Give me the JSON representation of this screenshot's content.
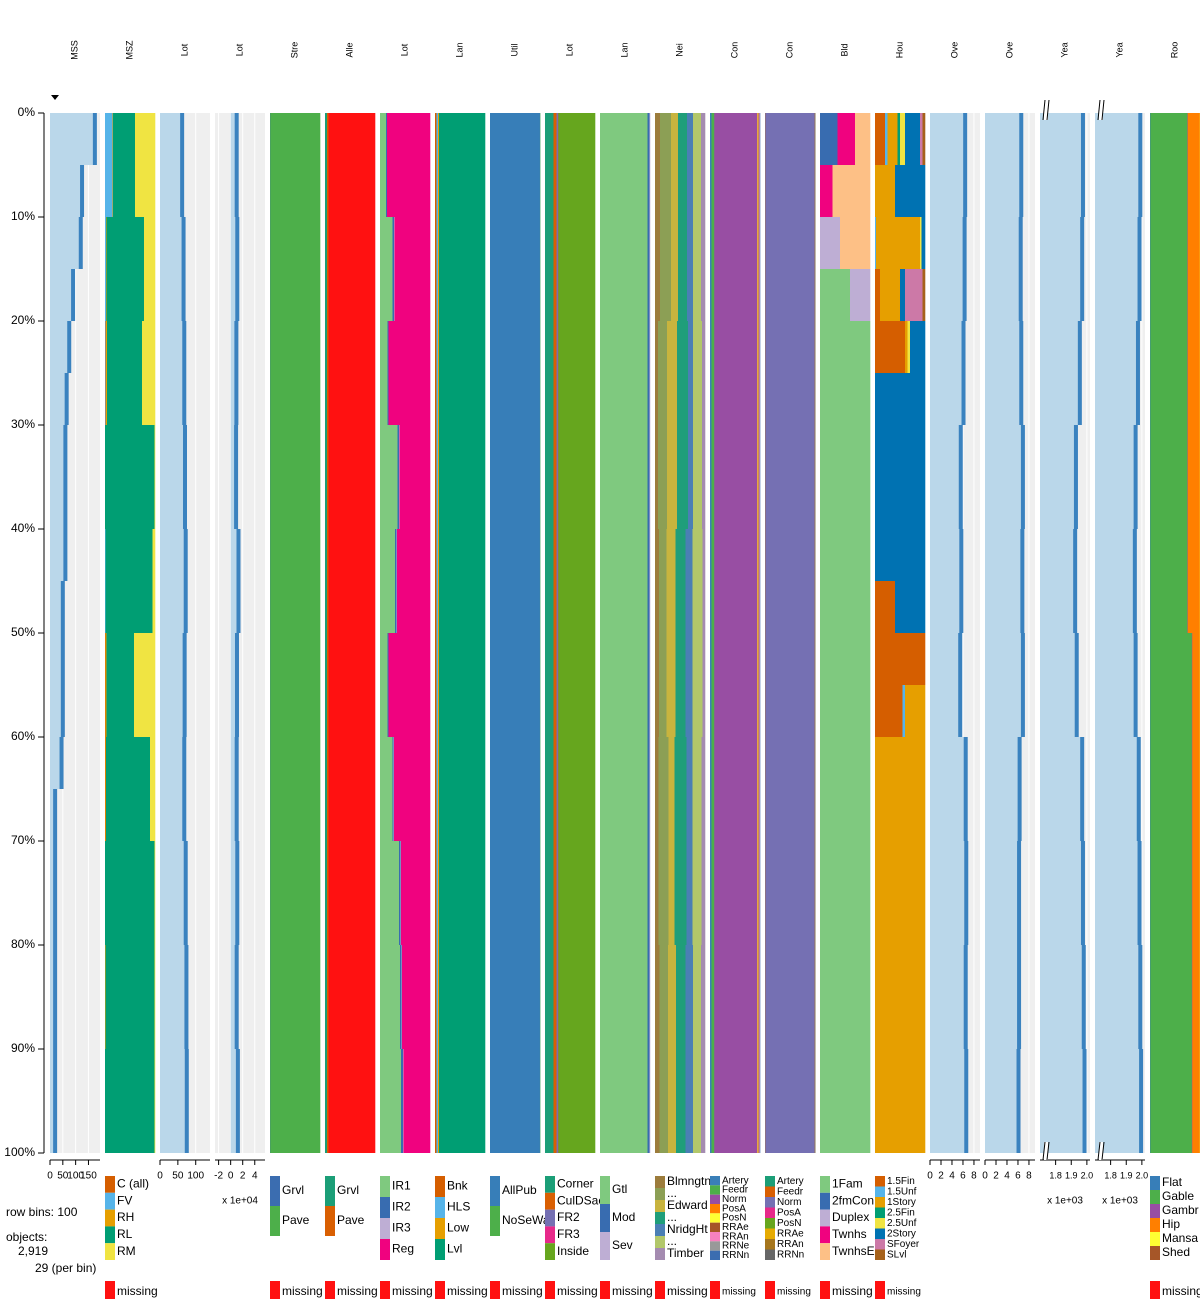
{
  "chart_data": {
    "type": "tableplot",
    "ylim": [
      0,
      100
    ],
    "yticks": [
      {
        "value": 0,
        "label": "0%"
      },
      {
        "value": 10,
        "label": "10%"
      },
      {
        "value": 20,
        "label": "20%"
      },
      {
        "value": 30,
        "label": "30%"
      },
      {
        "value": 40,
        "label": "40%"
      },
      {
        "value": 50,
        "label": "50%"
      },
      {
        "value": 60,
        "label": "60%"
      },
      {
        "value": 70,
        "label": "70%"
      },
      {
        "value": 80,
        "label": "80%"
      },
      {
        "value": 90,
        "label": "90%"
      },
      {
        "value": 100,
        "label": "100%"
      }
    ],
    "info": [
      "row bins: 100",
      "objects:",
      "2,919",
      "29 (per bin)"
    ],
    "numeric_color": "#bad7ea",
    "mean_color": "#3a82bf",
    "columns": [
      {
        "name": "MSS",
        "type": "numeric",
        "xlim": [
          0,
          195
        ],
        "xticks": [
          0,
          50,
          100,
          150
        ],
        "values": [
          175,
          125,
          120,
          90,
          75,
          65,
          60,
          60,
          60,
          50,
          50,
          50,
          45,
          20,
          20,
          20,
          20,
          20,
          20,
          20
        ]
      },
      {
        "name": "MSZ",
        "type": "categorical",
        "categories": [
          "C (all)",
          "FV",
          "RH",
          "RL",
          "RM",
          "missing"
        ],
        "colors": [
          "#d55e00",
          "#56b4e9",
          "#e69f00",
          "#009e73",
          "#f0e442",
          "#ff1111"
        ],
        "values": [
          [
            0,
            15,
            1,
            44,
            40,
            0
          ],
          [
            0,
            2,
            1,
            75,
            22,
            0
          ],
          [
            1,
            1,
            2,
            70,
            26,
            0
          ],
          [
            0,
            0,
            0,
            99,
            1,
            0
          ],
          [
            0,
            1,
            0,
            94,
            5,
            0
          ],
          [
            1,
            0,
            2,
            55,
            42,
            0
          ],
          [
            1,
            0,
            1,
            88,
            10,
            0
          ],
          [
            0,
            0,
            0,
            99,
            1,
            0
          ],
          [
            0,
            0,
            1,
            98,
            1,
            0
          ],
          [
            0,
            0,
            0,
            99,
            1,
            0
          ]
        ]
      },
      {
        "name": "Lot",
        "type": "numeric",
        "xlim": [
          0,
          140
        ],
        "xticks": [
          0,
          50,
          100
        ],
        "values": [
          62,
          66,
          68,
          70,
          72,
          69,
          68,
          72,
          74,
          75
        ]
      },
      {
        "name": "Lot",
        "type": "numeric",
        "xlim": [
          -2.6,
          5.7
        ],
        "xticks": [
          -2,
          0,
          2,
          4
        ],
        "multiplier": "x 1e+04",
        "values": [
          1.0,
          1.1,
          0.95,
          0.9,
          1.3,
          1.05,
          1.0,
          1.1,
          1.0,
          1.2
        ]
      },
      {
        "name": "Stre",
        "type": "categorical",
        "categories": [
          "Grvl",
          "Pave",
          "missing"
        ],
        "colors": [
          "#3b6db0",
          "#4daf4a",
          "#ff1111"
        ],
        "values": [
          [
            0.4,
            99.6,
            0
          ]
        ]
      },
      {
        "name": "Alle",
        "type": "categorical",
        "categories": [
          "Grvl",
          "Pave",
          "missing"
        ],
        "colors": [
          "#1b9e77",
          "#d95f02",
          "#ff1111"
        ],
        "values": [
          [
            4,
            3,
            93
          ]
        ]
      },
      {
        "name": "Lot",
        "type": "categorical",
        "categories": [
          "IR1",
          "IR2",
          "IR3",
          "Reg",
          "missing"
        ],
        "colors": [
          "#7fc97f",
          "#386cb0",
          "#beaed4",
          "#f0027f",
          "#ff1111"
        ],
        "values": [
          [
            12,
            2,
            0,
            86,
            0
          ],
          [
            25,
            3,
            1,
            71,
            0
          ],
          [
            15,
            2,
            0,
            83,
            0
          ],
          [
            35,
            3,
            1,
            61,
            0
          ],
          [
            30,
            3,
            1,
            66,
            0
          ],
          [
            15,
            2,
            0,
            83,
            0
          ],
          [
            25,
            2,
            1,
            72,
            0
          ],
          [
            38,
            3,
            1,
            58,
            0
          ],
          [
            40,
            3,
            1,
            56,
            0
          ],
          [
            42,
            4,
            1,
            53,
            0
          ]
        ]
      },
      {
        "name": "Lan",
        "type": "categorical",
        "categories": [
          "Bnk",
          "HLS",
          "Low",
          "Lvl",
          "missing"
        ],
        "colors": [
          "#d55e00",
          "#56b4e9",
          "#e69f00",
          "#009e73",
          "#ff1111"
        ],
        "values": [
          [
            3,
            3,
            2,
            92,
            0
          ]
        ]
      },
      {
        "name": "Util",
        "type": "categorical",
        "categories": [
          "AllPub",
          "NoSeWa",
          "missing"
        ],
        "colors": [
          "#377eb8",
          "#4daf4a",
          "#ff1111"
        ],
        "values": [
          [
            99.9,
            0.1,
            0
          ]
        ]
      },
      {
        "name": "Lot",
        "type": "categorical",
        "categories": [
          "Corner",
          "CulDSac",
          "FR2",
          "FR3",
          "Inside",
          "missing"
        ],
        "colors": [
          "#1b9e77",
          "#d95f02",
          "#7570b3",
          "#e7298a",
          "#66a61e",
          "#ff1111"
        ],
        "values": [
          [
            17,
            6,
            3,
            0.5,
            73.5,
            0
          ]
        ]
      },
      {
        "name": "Lan",
        "type": "categorical",
        "categories": [
          "Gtl",
          "Mod",
          "Sev",
          "missing"
        ],
        "colors": [
          "#7fc97f",
          "#386cb0",
          "#beaed4",
          "#ff1111"
        ],
        "values": [
          [
            95,
            4,
            1,
            0
          ]
        ]
      },
      {
        "name": "Nei",
        "type": "categorical",
        "categories": [
          "Blmngtn",
          "...",
          "Edward",
          "...",
          "NridgHt",
          "...",
          "Timber",
          "missing"
        ],
        "colors": [
          "#9c7c3c",
          "#8c9f55",
          "#c8b43e",
          "#1f9e7a",
          "#4a7fb5",
          "#b2c76a",
          "#a48bb0",
          "#ff1111"
        ],
        "values": [
          [
            10,
            22,
            14,
            18,
            12,
            16,
            8,
            0
          ],
          [
            6,
            18,
            20,
            22,
            10,
            18,
            6,
            0
          ],
          [
            8,
            15,
            18,
            20,
            14,
            20,
            5,
            0
          ],
          [
            7,
            20,
            12,
            24,
            12,
            18,
            7,
            0
          ],
          [
            9,
            17,
            16,
            19,
            15,
            16,
            8,
            0
          ]
        ]
      },
      {
        "name": "Con",
        "type": "categorical",
        "categories": [
          "Artery",
          "Feedr",
          "Norm",
          "PosA",
          "PosN",
          "RRAe",
          "RRAn",
          "RRNe",
          "RRNn",
          "missing"
        ],
        "colors": [
          "#3a7fb8",
          "#4daf4a",
          "#984ea3",
          "#ff7f00",
          "#ffff33",
          "#a65628",
          "#f781bf",
          "#999999",
          "#3b6db0",
          "#ff1111"
        ],
        "values": [
          [
            3,
            5.5,
            86,
            0.7,
            1.3,
            1,
            1.7,
            0.2,
            0.6,
            0
          ]
        ]
      },
      {
        "name": "Con",
        "type": "categorical",
        "categories": [
          "Artery",
          "Feedr",
          "Norm",
          "PosA",
          "PosN",
          "RRAe",
          "RRAn",
          "RRNn",
          "missing"
        ],
        "colors": [
          "#1b9e77",
          "#d95f02",
          "#7570b3",
          "#e7298a",
          "#66a61e",
          "#e6ab02",
          "#a6761d",
          "#666666",
          "#ff1111"
        ],
        "values": [
          [
            0.2,
            0.4,
            99,
            0.1,
            0.1,
            0.05,
            0.05,
            0.1,
            0
          ]
        ]
      },
      {
        "name": "Bld",
        "type": "categorical",
        "categories": [
          "1Fam",
          "2fmCon",
          "Duplex",
          "Twnhs",
          "TwnhsE",
          "missing"
        ],
        "colors": [
          "#7fc97f",
          "#386cb0",
          "#beaed4",
          "#f0027f",
          "#fdc086",
          "#ff1111"
        ],
        "values": [
          [
            0,
            35,
            0,
            35,
            30,
            0
          ],
          [
            0,
            0,
            0,
            25,
            75,
            0
          ],
          [
            0,
            0,
            40,
            0,
            60,
            0
          ],
          [
            60,
            0,
            40,
            0,
            0,
            0
          ],
          [
            100,
            0,
            0,
            0,
            0,
            0
          ],
          [
            100,
            0,
            0,
            0,
            0,
            0
          ],
          [
            100,
            0,
            0,
            0,
            0,
            0
          ],
          [
            100,
            0,
            0,
            0,
            0,
            0
          ],
          [
            100,
            0,
            0,
            0,
            0,
            0
          ],
          [
            100,
            0,
            0,
            0,
            0,
            0
          ],
          [
            100,
            0,
            0,
            0,
            0,
            0
          ],
          [
            100,
            0,
            0,
            0,
            0,
            0
          ],
          [
            100,
            0,
            0,
            0,
            0,
            0
          ],
          [
            100,
            0,
            0,
            0,
            0,
            0
          ],
          [
            100,
            0,
            0,
            0,
            0,
            0
          ],
          [
            100,
            0,
            0,
            0,
            0,
            0
          ],
          [
            100,
            0,
            0,
            0,
            0,
            0
          ],
          [
            100,
            0,
            0,
            0,
            0,
            0
          ],
          [
            100,
            0,
            0,
            0,
            0,
            0
          ],
          [
            100,
            0,
            0,
            0,
            0,
            0
          ]
        ]
      },
      {
        "name": "Hou",
        "type": "categorical",
        "categories": [
          "1.5Fin",
          "1.5Unf",
          "1Story",
          "2.5Fin",
          "2.5Unf",
          "2Story",
          "SFoyer",
          "SLvl",
          "missing"
        ],
        "colors": [
          "#d55e00",
          "#56b4e9",
          "#e69f00",
          "#009e73",
          "#f0e442",
          "#0072b2",
          "#cc79a7",
          "#a6611a",
          "#ff1111"
        ],
        "values": [
          [
            20,
            5,
            20,
            5,
            10,
            30,
            5,
            5,
            0
          ],
          [
            0,
            0,
            40,
            0,
            0,
            60,
            0,
            0,
            0
          ],
          [
            0,
            2,
            88,
            0,
            3,
            7,
            0,
            0,
            0
          ],
          [
            10,
            0,
            40,
            0,
            0,
            10,
            35,
            5,
            0
          ],
          [
            60,
            0,
            5,
            0,
            5,
            30,
            0,
            0,
            0
          ],
          [
            0,
            0,
            0,
            0,
            0,
            100,
            0,
            0,
            0
          ],
          [
            0,
            0,
            0,
            0,
            0,
            100,
            0,
            0,
            0
          ],
          [
            0,
            0,
            0,
            0,
            0,
            100,
            0,
            0,
            0
          ],
          [
            0,
            0,
            0,
            0,
            0,
            100,
            0,
            0,
            0
          ],
          [
            40,
            0,
            0,
            0,
            0,
            60,
            0,
            0,
            0
          ],
          [
            100,
            0,
            0,
            0,
            0,
            0,
            0,
            0,
            0
          ],
          [
            55,
            5,
            40,
            0,
            0,
            0,
            0,
            0,
            0
          ],
          [
            0,
            0,
            100,
            0,
            0,
            0,
            0,
            0,
            0
          ],
          [
            0,
            0,
            100,
            0,
            0,
            0,
            0,
            0,
            0
          ],
          [
            0,
            0,
            100,
            0,
            0,
            0,
            0,
            0,
            0
          ],
          [
            0,
            0,
            100,
            0,
            0,
            0,
            0,
            0,
            0
          ],
          [
            0,
            0,
            100,
            0,
            0,
            0,
            0,
            0,
            0
          ],
          [
            0,
            0,
            100,
            0,
            0,
            0,
            0,
            0,
            0
          ],
          [
            0,
            0,
            100,
            0,
            0,
            0,
            0,
            0,
            0
          ],
          [
            0,
            0,
            100,
            0,
            0,
            0,
            0,
            0,
            0
          ]
        ]
      },
      {
        "name": "Ove",
        "type": "numeric",
        "xlim": [
          0,
          9.1
        ],
        "xticks": [
          0,
          2,
          4,
          6,
          8
        ],
        "values": [
          6.4,
          6.3,
          6.1,
          5.6,
          5.7,
          5.5,
          6.5,
          6.6,
          6.5,
          6.6
        ]
      },
      {
        "name": "Ove",
        "type": "numeric",
        "xlim": [
          0,
          9.1
        ],
        "xticks": [
          0,
          2,
          4,
          6,
          8
        ],
        "values": [
          6.6,
          6.5,
          6.6,
          6.9,
          6.8,
          6.9,
          6.3,
          6.2,
          6.2,
          6.1
        ]
      },
      {
        "name": "Yea",
        "type": "numeric",
        "xlim": [
          1.7,
          2.02
        ],
        "xticks": [
          1.8,
          1.9,
          {
            "value": 2,
            "label": "2.0"
          }
        ],
        "multiplier": "x 1e+03",
        "axis_break": true,
        "values": [
          1.975,
          1.97,
          1.955,
          1.93,
          1.925,
          1.935,
          1.97,
          1.975,
          1.98,
          1.985
        ]
      },
      {
        "name": "Yea",
        "type": "numeric",
        "xlim": [
          1.7,
          2.02
        ],
        "xticks": [
          1.8,
          1.9,
          {
            "value": 2,
            "label": "2.0"
          }
        ],
        "multiplier": "x 1e+03",
        "axis_break": true,
        "values": [
          1.99,
          1.985,
          1.975,
          1.96,
          1.955,
          1.96,
          1.98,
          1.985,
          1.99,
          1.995
        ]
      },
      {
        "name": "Roo",
        "type": "categorical",
        "categories": [
          "Flat",
          "Gable",
          "Gambr",
          "Hip",
          "Mansa",
          "Shed",
          "missing"
        ],
        "colors": [
          "#377eb8",
          "#4daf4a",
          "#984ea3",
          "#ff7f00",
          "#ffff33",
          "#a65628",
          "#ff1111"
        ],
        "values": [
          [
            0.7,
            74,
            0.8,
            24,
            0.4,
            0.1,
            0
          ],
          [
            0.7,
            83,
            0.8,
            15,
            0.4,
            0.1,
            0
          ]
        ]
      }
    ]
  }
}
